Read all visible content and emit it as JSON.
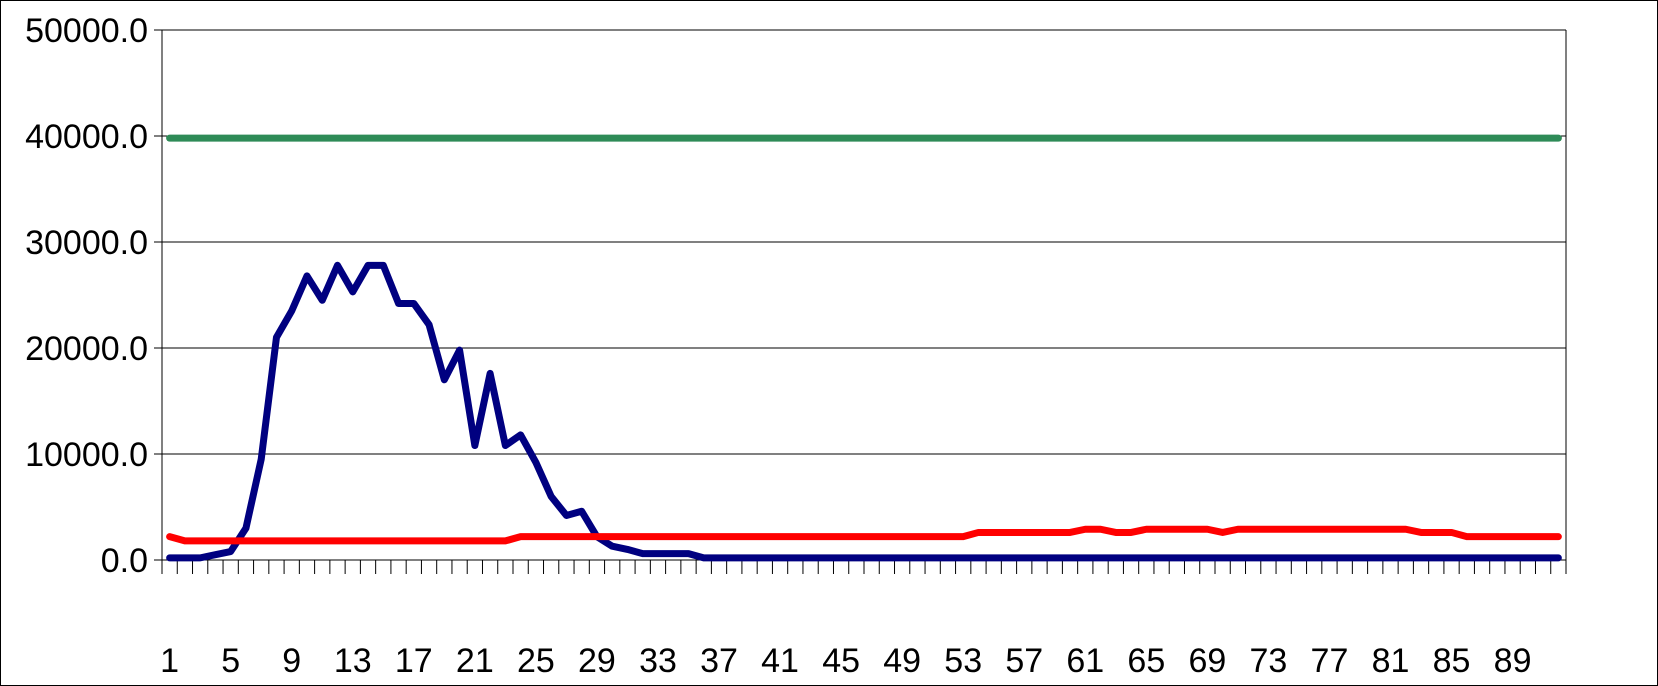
{
  "chart_data": {
    "type": "line",
    "title": "",
    "xlabel": "",
    "ylabel": "",
    "ylim": [
      0,
      50000
    ],
    "y_ticks": [
      "0.0",
      "10000.0",
      "20000.0",
      "30000.0",
      "40000.0",
      "50000.0"
    ],
    "x_range": [
      1,
      92
    ],
    "x_tick_labels": [
      "1",
      "5",
      "9",
      "13",
      "17",
      "21",
      "25",
      "29",
      "33",
      "37",
      "41",
      "45",
      "49",
      "53",
      "57",
      "61",
      "65",
      "69",
      "73",
      "77",
      "81",
      "85",
      "89"
    ],
    "grid": "horizontal",
    "legend": "none",
    "series": [
      {
        "color": "#000080",
        "values": [
          200,
          200,
          200,
          500,
          800,
          3000,
          9500,
          21000,
          23500,
          26800,
          24500,
          27800,
          25300,
          27800,
          27800,
          24200,
          24200,
          22200,
          17000,
          19800,
          10800,
          17600,
          10800,
          11800,
          9200,
          6000,
          4200,
          4600,
          2200,
          1300,
          1000,
          600,
          600,
          600,
          600,
          200,
          200,
          200,
          200,
          200,
          200,
          200,
          200,
          200,
          200,
          200,
          200,
          200,
          200,
          200,
          200,
          200,
          200,
          200,
          200,
          200,
          200,
          200,
          200,
          200,
          200,
          200,
          200,
          200,
          200,
          200,
          200,
          200,
          200,
          200,
          200,
          200,
          200,
          200,
          200,
          200,
          200,
          200,
          200,
          200,
          200,
          200,
          200,
          200,
          200,
          200,
          200,
          200,
          200,
          200,
          200,
          200
        ]
      },
      {
        "color": "#ff0000",
        "values": [
          2200,
          1800,
          1800,
          1800,
          1800,
          1800,
          1800,
          1800,
          1800,
          1800,
          1800,
          1800,
          1800,
          1800,
          1800,
          1800,
          1800,
          1800,
          1800,
          1800,
          1800,
          1800,
          1800,
          2200,
          2200,
          2200,
          2200,
          2200,
          2200,
          2200,
          2200,
          2200,
          2200,
          2200,
          2200,
          2200,
          2200,
          2200,
          2200,
          2200,
          2200,
          2200,
          2200,
          2200,
          2200,
          2200,
          2200,
          2200,
          2200,
          2200,
          2200,
          2200,
          2200,
          2600,
          2600,
          2600,
          2600,
          2600,
          2600,
          2600,
          2900,
          2900,
          2600,
          2600,
          2900,
          2900,
          2900,
          2900,
          2900,
          2600,
          2900,
          2900,
          2900,
          2900,
          2900,
          2900,
          2900,
          2900,
          2900,
          2900,
          2900,
          2900,
          2600,
          2600,
          2600,
          2200,
          2200,
          2200,
          2200,
          2200,
          2200,
          2200
        ]
      },
      {
        "color": "#2e8b57",
        "constant": 39800
      }
    ]
  }
}
